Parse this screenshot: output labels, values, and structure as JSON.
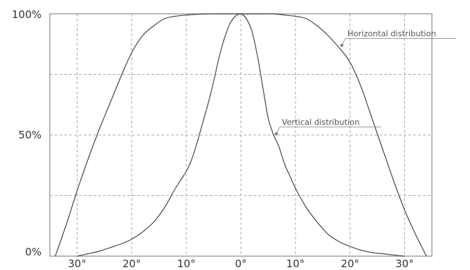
{
  "chart_data": {
    "type": "line",
    "title": "",
    "xlabel": "",
    "ylabel": "",
    "xlim": [
      -35,
      35
    ],
    "ylim": [
      0,
      100
    ],
    "x_ticks": [
      -30,
      -20,
      -10,
      0,
      10,
      20,
      30
    ],
    "x_tick_labels": [
      "30°",
      "20°",
      "10°",
      "0°",
      "10°",
      "20°",
      "30°"
    ],
    "y_ticks": [
      0,
      50,
      100
    ],
    "y_tick_labels": [
      "0%",
      "50%",
      "100%"
    ],
    "y_gridlines": [
      25,
      50,
      75
    ],
    "grid": "dashed",
    "colors": {
      "line": "#444444",
      "grid": "#aaaaaa",
      "frame": "#a0a0a0",
      "annotation": "#777777"
    },
    "series": [
      {
        "x": [
          -34,
          -32,
          -30,
          -28,
          -26,
          -24,
          -22,
          -20,
          -18,
          -16,
          -14,
          -12,
          -10,
          -8,
          -6,
          -4,
          -2,
          0,
          2,
          4,
          6,
          8,
          10,
          12,
          14,
          16,
          18,
          20,
          22,
          24,
          26,
          28,
          30,
          32,
          34
        ],
        "values": [
          0,
          13,
          27,
          40,
          52,
          63,
          74,
          84,
          91,
          95,
          98,
          99,
          99.5,
          99.8,
          100,
          100,
          100,
          100,
          100,
          100,
          100,
          99.5,
          99,
          98,
          95,
          91,
          86,
          80,
          70,
          57,
          44,
          31,
          19,
          9,
          0
        ]
      },
      {
        "x": [
          -30,
          -28,
          -26,
          -24,
          -22,
          -20,
          -18,
          -16,
          -14,
          -12,
          -10,
          -9,
          -8,
          -7,
          -6,
          -5,
          -4,
          -3,
          -2,
          -1,
          0,
          1,
          2,
          3,
          4,
          5,
          6,
          7,
          8,
          9,
          10,
          12,
          14,
          16,
          18,
          20,
          22,
          24,
          26,
          28,
          30
        ],
        "values": [
          0,
          1,
          2,
          3.5,
          5,
          7,
          10,
          14,
          20,
          28,
          35,
          40,
          47,
          55,
          63,
          72,
          82,
          90,
          96,
          99,
          100,
          98,
          93,
          83,
          70,
          57,
          50,
          45,
          38,
          33,
          28,
          20,
          14,
          9,
          6,
          4,
          2.5,
          1.5,
          1,
          0.5,
          0
        ]
      }
    ],
    "annotations": [
      {
        "text": "Horizontal distribution",
        "x": 18.5,
        "y": 87
      },
      {
        "text": "Vertical distribution",
        "x": 6.5,
        "y": 50.5
      }
    ]
  }
}
